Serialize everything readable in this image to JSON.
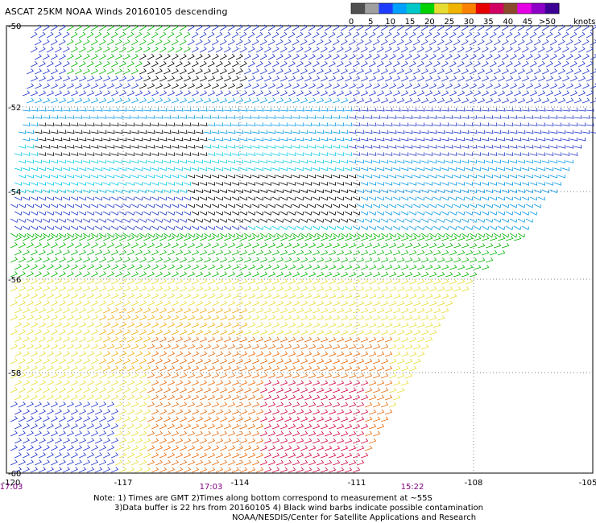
{
  "title": "ASCAT 25KM NOAA Winds 20160105 descending",
  "legend": {
    "unit": "knots",
    "ticks": [
      "0",
      "5",
      "10",
      "15",
      "20",
      "25",
      "30",
      "35",
      "40",
      "45",
      ">50"
    ],
    "colors": [
      "#505050",
      "#a0a0a0",
      "#1e3cff",
      "#00a0ff",
      "#00c8c8",
      "#00d200",
      "#e6dc32",
      "#f0b400",
      "#fa8200",
      "#e60000",
      "#d20064",
      "#8c4a2c",
      "#e600e6",
      "#8c00c8",
      "#3c0096"
    ]
  },
  "map": {
    "lat_labels": [
      "-50",
      "-52",
      "-54",
      "-56",
      "-58",
      "-60"
    ],
    "lon_labels": [
      "-120",
      "-117",
      "-114",
      "-111",
      "-108",
      "-105"
    ],
    "time_labels": [
      "17:03",
      "17:03",
      "15:22"
    ]
  },
  "wind_colors": {
    "contaminated": "#000000",
    "knots_5_10": "#00c8e6",
    "knots_10_15": "#0096e6",
    "knots_15_20": "#1e32c8",
    "knots_20_25": "#00b400",
    "knots_25_30": "#e6dc32",
    "knots_30_35": "#f0aa00",
    "knots_35_40": "#e66400",
    "knots_40_45": "#d2003c"
  },
  "notes": {
    "line1": "Note: 1) Times are GMT 2)Times along bottom correspond to measurement at ~55S",
    "line2": "3)Data buffer is 22 hrs from 20160105 4) Black wind barbs indicate possible contamination",
    "line3": "NOAA/NESDIS/Center for Satellite Applications and Research"
  }
}
